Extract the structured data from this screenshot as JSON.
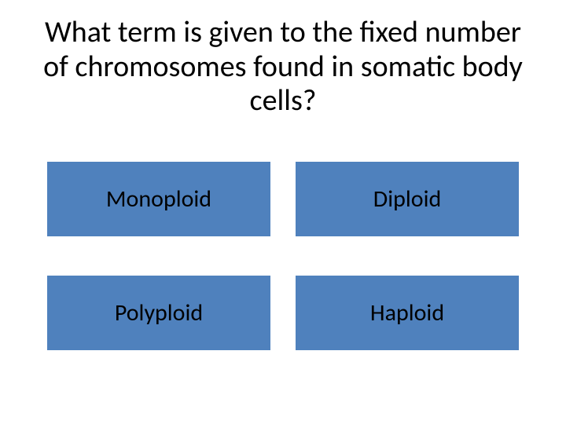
{
  "question": {
    "text": "What term is given to the fixed number of chromosomes found in somatic body cells?",
    "fontsize": 38,
    "color": "#000000"
  },
  "options": [
    {
      "label": "Monoploid"
    },
    {
      "label": "Diploid"
    },
    {
      "label": "Polyploid"
    },
    {
      "label": "Haploid"
    }
  ],
  "card": {
    "background_color": "#4f81bd",
    "label_color": "#000000",
    "label_fontsize": 30
  },
  "layout": {
    "background_color": "#ffffff",
    "columns": 2,
    "rows": 2
  }
}
